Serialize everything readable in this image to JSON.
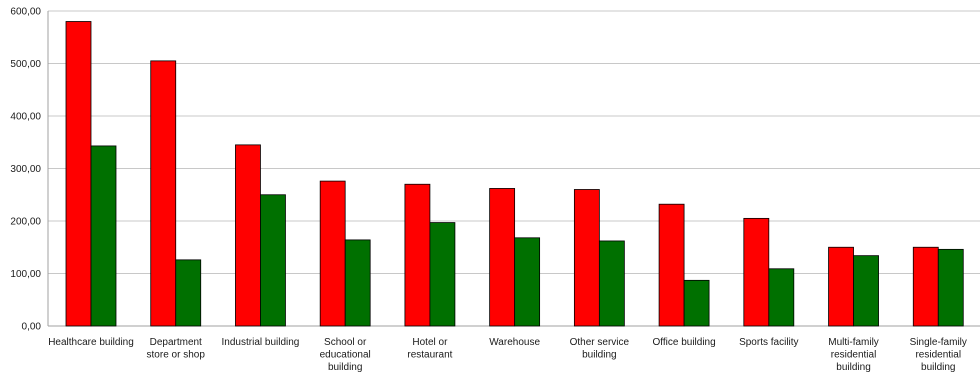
{
  "chart_data": {
    "type": "bar",
    "title": "",
    "xlabel": "",
    "ylabel": "",
    "ylim": [
      0,
      600
    ],
    "yticks": [
      "0,00",
      "100,00",
      "200,00",
      "300,00",
      "400,00",
      "500,00",
      "600,00"
    ],
    "grid": true,
    "legend": "none",
    "categories": [
      [
        "Healthcare building"
      ],
      [
        "Department",
        "store or shop"
      ],
      [
        "Industrial building"
      ],
      [
        "School or",
        "educational",
        "building"
      ],
      [
        "Hotel or",
        "restaurant"
      ],
      [
        "Warehouse"
      ],
      [
        "Other service",
        "building"
      ],
      [
        "Office building"
      ],
      [
        "Sports facility"
      ],
      [
        "Multi-family",
        "residential",
        "building"
      ],
      [
        "Single-family",
        "residential",
        "building"
      ]
    ],
    "series": [
      {
        "color": "#ff0000",
        "values": [
          580,
          505,
          345,
          276,
          270,
          262,
          260,
          232,
          205,
          150,
          150
        ]
      },
      {
        "color": "#007000",
        "values": [
          343,
          126,
          250,
          164,
          197,
          168,
          162,
          87,
          109,
          134,
          146
        ]
      }
    ]
  }
}
